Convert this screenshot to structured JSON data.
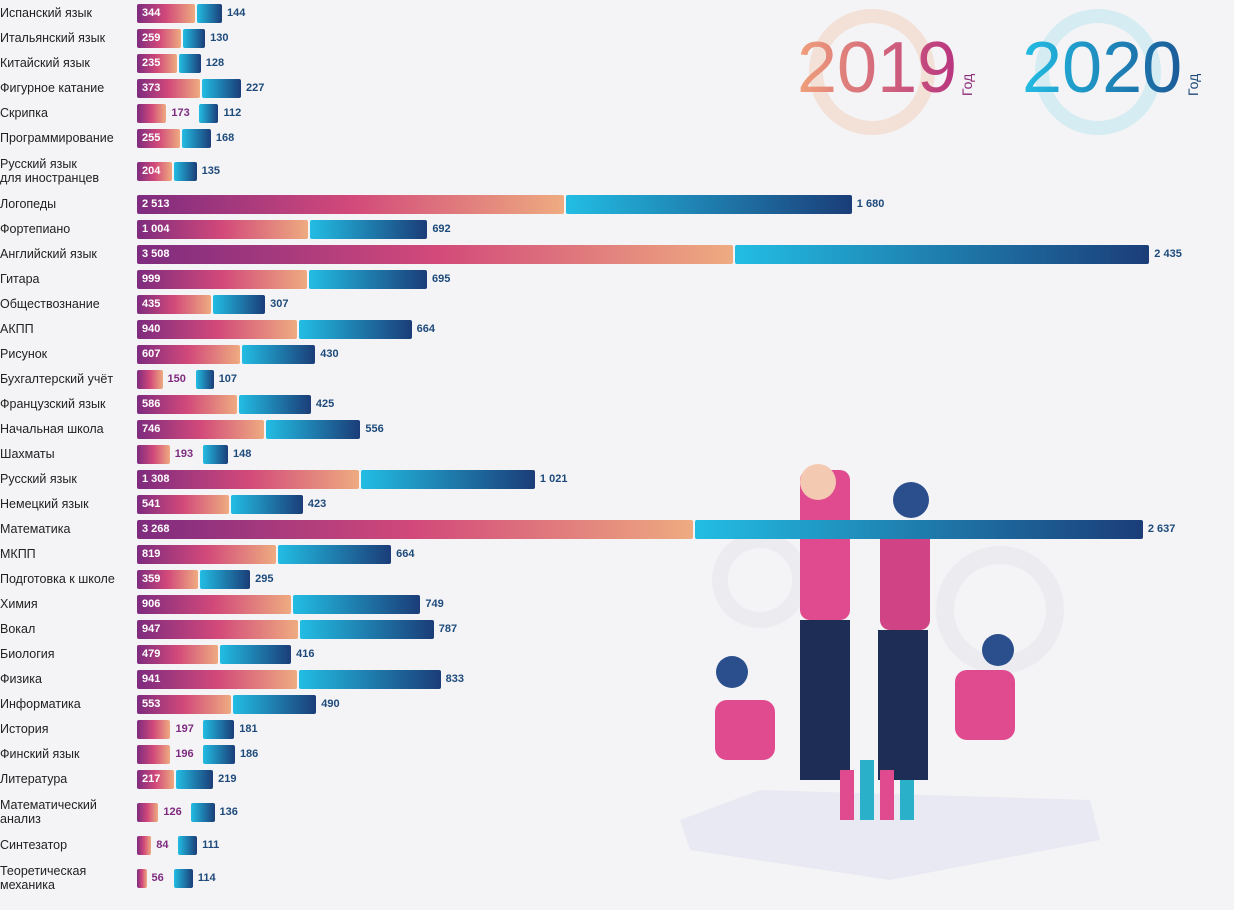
{
  "chart_data": {
    "type": "bar",
    "orientation": "horizontal",
    "legend_suffix": "Год",
    "categories": [
      "Испанский язык",
      "Итальянский язык",
      "Китайский язык",
      "Фигурное катание",
      "Скрипка",
      "Программирование",
      "Русский язык\nдля иностранцев",
      "Логопеды",
      "Фортепиано",
      "Английский язык",
      "Гитара",
      "Обществознание",
      "АКПП",
      "Рисунок",
      "Бухгалтерский учёт",
      "Французский язык",
      "Начальная школа",
      "Шахматы",
      "Русский язык",
      "Немецкий язык",
      "Математика",
      "МКПП",
      "Подготовка к школе",
      "Химия",
      "Вокал",
      "Биология",
      "Физика",
      "Информатика",
      "История",
      "Финский язык",
      "Литература",
      "Математический\nанализ",
      "Синтезатор",
      "Теоретическая\nмеханика"
    ],
    "series": [
      {
        "name": "2019",
        "color": [
          "#7e2b7f",
          "#d2497a",
          "#eeab80"
        ],
        "label_color": "#7e2b7f",
        "values": [
          344,
          259,
          235,
          373,
          173,
          255,
          204,
          2513,
          1004,
          3508,
          999,
          435,
          940,
          607,
          150,
          586,
          746,
          193,
          1308,
          541,
          3268,
          819,
          359,
          906,
          947,
          479,
          941,
          553,
          197,
          196,
          217,
          126,
          84,
          56
        ],
        "value_labels": [
          "344",
          "259",
          "235",
          "373",
          "173",
          "255",
          "204",
          "2 513",
          "1 004",
          "3 508",
          "999",
          "435",
          "940",
          "607",
          "150",
          "586",
          "746",
          "193",
          "1 308",
          "541",
          "3 268",
          "819",
          "359",
          "906",
          "947",
          "479",
          "941",
          "553",
          "197",
          "196",
          "217",
          "126",
          "84",
          "56"
        ]
      },
      {
        "name": "2020",
        "color": [
          "#22bde3",
          "#1b3d78"
        ],
        "label_color": "#1d4a7a",
        "values": [
          144,
          130,
          128,
          227,
          112,
          168,
          135,
          1680,
          692,
          2435,
          695,
          307,
          664,
          430,
          107,
          425,
          556,
          148,
          1021,
          423,
          2637,
          664,
          295,
          749,
          787,
          416,
          833,
          490,
          181,
          186,
          219,
          136,
          111,
          114
        ],
        "value_labels": [
          "144",
          "130",
          "128",
          "227",
          "112",
          "168",
          "135",
          "1 680",
          "692",
          "2 435",
          "695",
          "307",
          "664",
          "430",
          "107",
          "425",
          "556",
          "148",
          "1 021",
          "423",
          "2 637",
          "664",
          "295",
          "749",
          "787",
          "416",
          "833",
          "490",
          "181",
          "186",
          "219",
          "136",
          "111",
          "114"
        ]
      }
    ]
  }
}
